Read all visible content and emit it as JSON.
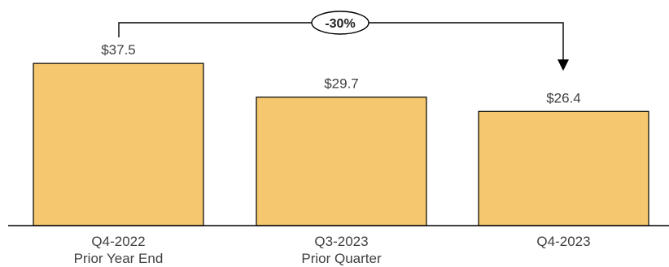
{
  "chart_data": {
    "type": "bar",
    "categories": [
      {
        "label_line1": "Q4-2022",
        "label_line2": "Prior Year End"
      },
      {
        "label_line1": "Q3-2023",
        "label_line2": "Prior Quarter"
      },
      {
        "label_line1": "Q4-2023",
        "label_line2": ""
      }
    ],
    "values": [
      37.5,
      29.7,
      26.4
    ],
    "value_labels": [
      "$37.5",
      "$29.7",
      "$26.4"
    ],
    "ylim": [
      0,
      42
    ],
    "grid": false,
    "legend": "none",
    "annotation": {
      "text": "-30%",
      "from_category_index": 0,
      "to_category_index": 2
    },
    "colors": {
      "bar_fill": "#F5C76E",
      "bar_stroke": "#000000",
      "text": "#404040",
      "axis": "#000000"
    }
  }
}
